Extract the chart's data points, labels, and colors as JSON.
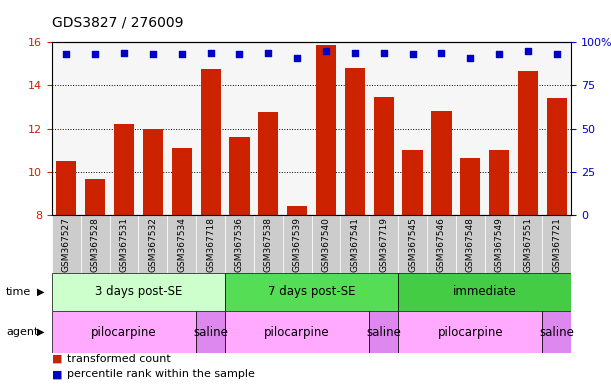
{
  "title": "GDS3827 / 276009",
  "samples": [
    "GSM367527",
    "GSM367528",
    "GSM367531",
    "GSM367532",
    "GSM367534",
    "GSM367718",
    "GSM367536",
    "GSM367538",
    "GSM367539",
    "GSM367540",
    "GSM367541",
    "GSM367719",
    "GSM367545",
    "GSM367546",
    "GSM367548",
    "GSM367549",
    "GSM367551",
    "GSM367721"
  ],
  "bar_values": [
    10.5,
    9.65,
    12.2,
    12.0,
    11.1,
    14.75,
    11.6,
    12.75,
    8.4,
    15.85,
    14.8,
    13.45,
    11.0,
    12.8,
    10.65,
    11.0,
    14.65,
    13.4
  ],
  "dot_y2_values": [
    93,
    93,
    94,
    93,
    93,
    94,
    93,
    94,
    91,
    95,
    94,
    94,
    93,
    94,
    91,
    93,
    95,
    93
  ],
  "ylim": [
    8,
    16
  ],
  "yticks": [
    8,
    10,
    12,
    14,
    16
  ],
  "y2lim": [
    0,
    100
  ],
  "y2ticks": [
    0,
    25,
    50,
    75,
    100
  ],
  "bar_color": "#cc2200",
  "dot_color": "#0000cc",
  "time_groups": [
    {
      "label": "3 days post-SE",
      "start": 0,
      "end": 6,
      "color": "#ccffcc"
    },
    {
      "label": "7 days post-SE",
      "start": 6,
      "end": 12,
      "color": "#55dd55"
    },
    {
      "label": "immediate",
      "start": 12,
      "end": 18,
      "color": "#44cc44"
    }
  ],
  "agent_groups": [
    {
      "label": "pilocarpine",
      "start": 0,
      "end": 5,
      "color": "#ffaaff"
    },
    {
      "label": "saline",
      "start": 5,
      "end": 6,
      "color": "#dd88ee"
    },
    {
      "label": "pilocarpine",
      "start": 6,
      "end": 11,
      "color": "#ffaaff"
    },
    {
      "label": "saline",
      "start": 11,
      "end": 12,
      "color": "#dd88ee"
    },
    {
      "label": "pilocarpine",
      "start": 12,
      "end": 17,
      "color": "#ffaaff"
    },
    {
      "label": "saline",
      "start": 17,
      "end": 18,
      "color": "#dd88ee"
    }
  ]
}
